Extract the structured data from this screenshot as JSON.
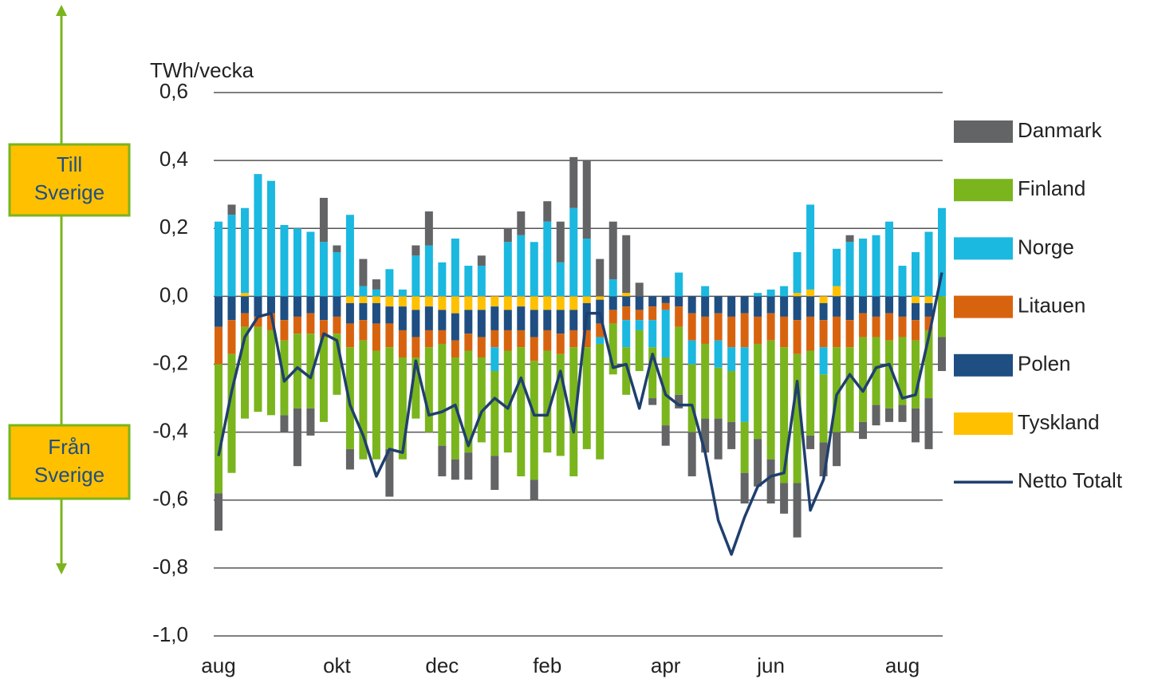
{
  "chart_data": {
    "type": "bar",
    "stacked": true,
    "y_label": "TWh/vecka",
    "annotations": [
      {
        "lines": [
          "Till",
          "Sverige"
        ]
      },
      {
        "lines": [
          "Från",
          "Sverige"
        ]
      }
    ],
    "categories": [
      "aug",
      null,
      null,
      null,
      null,
      null,
      null,
      null,
      null,
      "okt",
      null,
      null,
      null,
      null,
      null,
      null,
      null,
      "dec",
      null,
      null,
      null,
      null,
      null,
      null,
      null,
      "feb",
      null,
      null,
      null,
      null,
      null,
      null,
      null,
      null,
      "apr",
      null,
      null,
      null,
      null,
      null,
      null,
      null,
      "jun",
      null,
      null,
      null,
      null,
      null,
      null,
      null,
      null,
      null,
      "aug",
      null,
      null,
      null
    ],
    "ylim": [
      -1.0,
      0.6
    ],
    "yticks": [
      {
        "value": 0.6,
        "label": "0,6"
      },
      {
        "value": 0.4,
        "label": "0,4"
      },
      {
        "value": 0.2,
        "label": "0,2"
      },
      {
        "value": 0,
        "label": "0,0"
      },
      {
        "value": -0.2,
        "label": "-0,2"
      },
      {
        "value": -0.4,
        "label": "-0,4"
      },
      {
        "value": -0.6,
        "label": "-0,6"
      },
      {
        "value": -0.8,
        "label": "-0,8"
      },
      {
        "value": -1.0,
        "label": "-1,0"
      }
    ],
    "grid": true,
    "legend": "right",
    "series": [
      {
        "name": "Danmark",
        "color": "#636466",
        "values": [
          -0.11,
          0.03,
          0,
          0,
          0,
          -0.05,
          -0.17,
          -0.08,
          0.13,
          0.02,
          -0.06,
          0.08,
          0.03,
          -0.14,
          0,
          0.03,
          0.1,
          -0.09,
          -0.06,
          -0.08,
          0.03,
          -0.1,
          0.04,
          0.07,
          -0.06,
          0.06,
          0.12,
          0.15,
          0.23,
          0.11,
          0.17,
          0.17,
          0.04,
          -0.02,
          -0.06,
          -0.04,
          -0.13,
          -0.1,
          -0.12,
          -0.08,
          -0.09,
          -0.14,
          -0.13,
          -0.09,
          -0.16,
          -0.04,
          -0.1,
          -0.1,
          0.02,
          -0.05,
          -0.06,
          -0.04,
          -0.05,
          -0.1,
          -0.15,
          -0.1
        ]
      },
      {
        "name": "Finland",
        "color": "#7ab51d",
        "values": [
          -0.38,
          -0.35,
          -0.27,
          -0.25,
          -0.25,
          -0.22,
          -0.22,
          -0.22,
          -0.25,
          -0.18,
          -0.3,
          -0.35,
          -0.32,
          -0.3,
          -0.3,
          -0.18,
          -0.25,
          -0.3,
          -0.3,
          -0.3,
          -0.25,
          -0.25,
          -0.3,
          -0.38,
          -0.35,
          -0.3,
          -0.3,
          -0.38,
          -0.3,
          -0.34,
          -0.15,
          -0.14,
          -0.12,
          -0.15,
          -0.2,
          -0.2,
          -0.2,
          -0.22,
          -0.15,
          -0.15,
          -0.15,
          -0.28,
          -0.35,
          -0.4,
          -0.38,
          -0.25,
          -0.2,
          -0.25,
          -0.25,
          -0.25,
          -0.2,
          -0.2,
          -0.2,
          -0.2,
          -0.2,
          -0.12
        ]
      },
      {
        "name": "Norge",
        "color": "#1bb8e0",
        "values": [
          0.22,
          0.24,
          0.25,
          0.36,
          0.34,
          0.21,
          0.2,
          0.19,
          0.16,
          0.13,
          0.24,
          0.03,
          0.02,
          0.08,
          0.02,
          0.12,
          0.15,
          0.1,
          0.17,
          0.09,
          0.09,
          -0.07,
          0.16,
          0.18,
          0.16,
          0.22,
          0.1,
          0.26,
          0.17,
          -0.02,
          0.05,
          -0.08,
          -0.03,
          -0.08,
          -0.14,
          0.07,
          -0.07,
          0.03,
          -0.08,
          -0.07,
          -0.22,
          0.01,
          0.02,
          0.03,
          0.12,
          0.25,
          -0.08,
          0.11,
          0.16,
          0.17,
          0.18,
          0.22,
          0.09,
          0.13,
          0.19,
          0.26
        ]
      },
      {
        "name": "Litauen",
        "color": "#d8630f",
        "values": [
          -0.11,
          -0.1,
          -0.04,
          -0.03,
          -0.05,
          -0.06,
          -0.05,
          -0.06,
          -0.05,
          -0.05,
          -0.07,
          -0.06,
          -0.08,
          -0.07,
          -0.08,
          -0.06,
          -0.05,
          -0.04,
          -0.05,
          -0.05,
          -0.06,
          -0.05,
          -0.06,
          -0.05,
          -0.07,
          -0.06,
          -0.06,
          -0.05,
          -0.05,
          -0.04,
          -0.04,
          -0.04,
          -0.03,
          -0.04,
          -0.02,
          -0.06,
          -0.08,
          -0.08,
          -0.08,
          -0.09,
          -0.1,
          -0.08,
          -0.08,
          -0.09,
          -0.1,
          -0.1,
          -0.08,
          -0.09,
          -0.08,
          -0.07,
          -0.06,
          -0.08,
          -0.06,
          -0.06,
          -0.04,
          0
        ]
      },
      {
        "name": "Polen",
        "color": "#1f4e82",
        "values": [
          -0.09,
          -0.07,
          -0.05,
          -0.06,
          -0.05,
          -0.07,
          -0.06,
          -0.05,
          -0.07,
          -0.06,
          -0.06,
          -0.05,
          -0.06,
          -0.05,
          -0.07,
          -0.08,
          -0.07,
          -0.06,
          -0.08,
          -0.07,
          -0.08,
          -0.07,
          -0.06,
          -0.07,
          -0.08,
          -0.06,
          -0.07,
          -0.06,
          -0.08,
          -0.07,
          -0.04,
          -0.03,
          -0.04,
          -0.03,
          -0.02,
          -0.03,
          -0.05,
          -0.06,
          -0.05,
          -0.06,
          -0.05,
          -0.06,
          -0.05,
          -0.06,
          -0.07,
          -0.06,
          -0.05,
          -0.06,
          -0.07,
          -0.05,
          -0.06,
          -0.05,
          -0.06,
          -0.05,
          -0.04,
          0
        ]
      },
      {
        "name": "Tyskland",
        "color": "#ffc000",
        "values": [
          0,
          0,
          0.01,
          0,
          0,
          0,
          0,
          0,
          0,
          0,
          -0.02,
          -0.02,
          -0.02,
          -0.03,
          -0.03,
          -0.04,
          -0.03,
          -0.04,
          -0.05,
          -0.04,
          -0.04,
          -0.03,
          -0.04,
          -0.03,
          -0.04,
          -0.04,
          -0.04,
          -0.04,
          -0.02,
          -0.01,
          0,
          0.01,
          0,
          0,
          0,
          0,
          0,
          0,
          0,
          0,
          0,
          0,
          0,
          0,
          0.01,
          0.02,
          -0.02,
          0.03,
          0,
          0,
          0,
          0,
          0,
          -0.02,
          -0.02,
          0
        ]
      },
      {
        "name": "Netto Totalt",
        "color": "#1f3f6e",
        "type": "line",
        "values": [
          -0.47,
          -0.28,
          -0.12,
          -0.06,
          -0.05,
          -0.25,
          -0.21,
          -0.24,
          -0.11,
          -0.13,
          -0.32,
          -0.41,
          -0.53,
          -0.45,
          -0.46,
          -0.19,
          -0.35,
          -0.34,
          -0.32,
          -0.44,
          -0.34,
          -0.3,
          -0.33,
          -0.24,
          -0.35,
          -0.35,
          -0.22,
          -0.4,
          -0.05,
          -0.05,
          -0.21,
          -0.2,
          -0.33,
          -0.17,
          -0.29,
          -0.32,
          -0.32,
          -0.46,
          -0.66,
          -0.76,
          -0.65,
          -0.56,
          -0.53,
          -0.52,
          -0.25,
          -0.63,
          -0.54,
          -0.29,
          -0.23,
          -0.28,
          -0.21,
          -0.2,
          -0.3,
          -0.29,
          -0.12,
          0.07
        ]
      }
    ]
  }
}
